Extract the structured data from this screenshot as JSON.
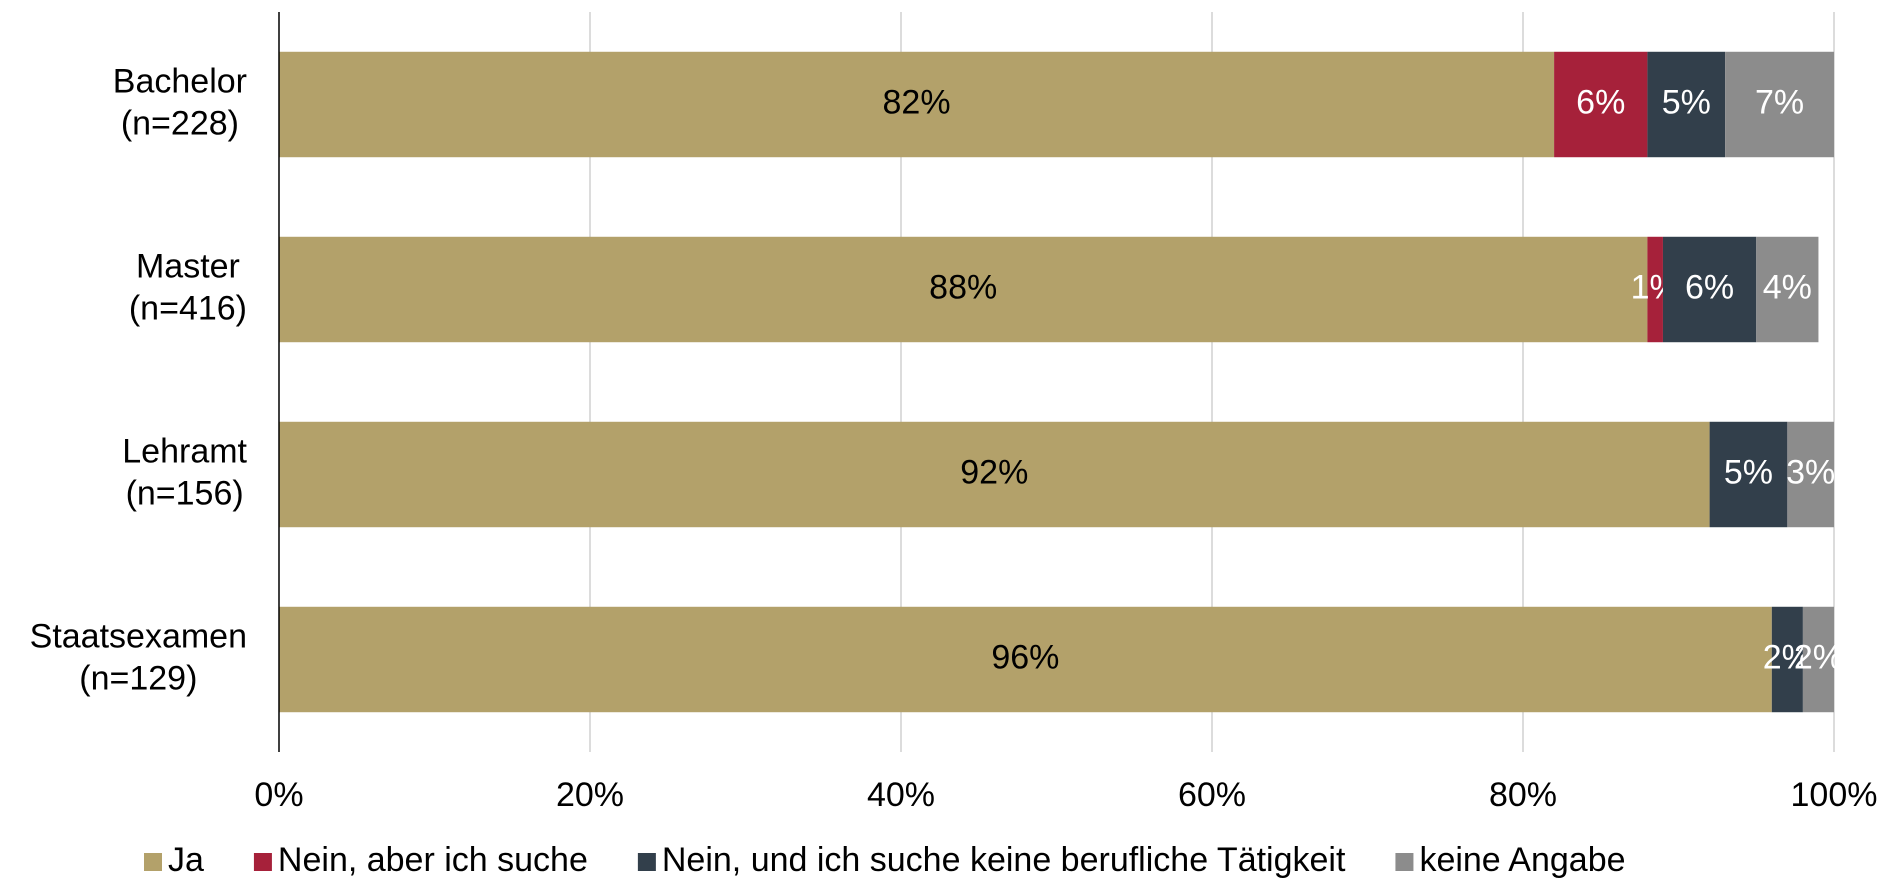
{
  "chart_data": {
    "type": "stacked-barh",
    "categories": [
      [
        "Bachelor",
        "(n=228)"
      ],
      [
        "Master",
        "(n=416)"
      ],
      [
        "Lehramt",
        "(n=156)"
      ],
      [
        "Staatsexamen",
        "(n=129)"
      ]
    ],
    "series": [
      {
        "name": "Ja",
        "color": "#b3a16a",
        "label_color": "#000000",
        "values": [
          82,
          88,
          92,
          96
        ],
        "value_labels": [
          "82%",
          "88%",
          "92%",
          "96%"
        ]
      },
      {
        "name": "Nein, aber ich suche",
        "color": "#a6213a",
        "label_color": "#ffffff",
        "values": [
          6,
          1,
          null,
          null
        ],
        "value_labels": [
          "6%",
          "1%",
          null,
          null
        ]
      },
      {
        "name": "Nein, und ich suche keine berufliche Tätigkeit",
        "color": "#323f4b",
        "label_color": "#ffffff",
        "values": [
          5,
          6,
          5,
          2
        ],
        "value_labels": [
          "5%",
          "6%",
          "5%",
          "2%"
        ]
      },
      {
        "name": "keine Angabe",
        "color": "#8c8c8c",
        "label_color": "#ffffff",
        "values": [
          7,
          4,
          3,
          2
        ],
        "value_labels": [
          "7%",
          "4%",
          "3%",
          "2%"
        ]
      }
    ],
    "xlim": [
      0,
      100
    ],
    "xticks": [
      {
        "value": 0,
        "label": "0%"
      },
      {
        "value": 20,
        "label": "20%"
      },
      {
        "value": 40,
        "label": "40%"
      },
      {
        "value": 60,
        "label": "60%"
      },
      {
        "value": 80,
        "label": "80%"
      },
      {
        "value": 100,
        "label": "100%"
      }
    ],
    "grid": true,
    "legend": "bottom"
  }
}
